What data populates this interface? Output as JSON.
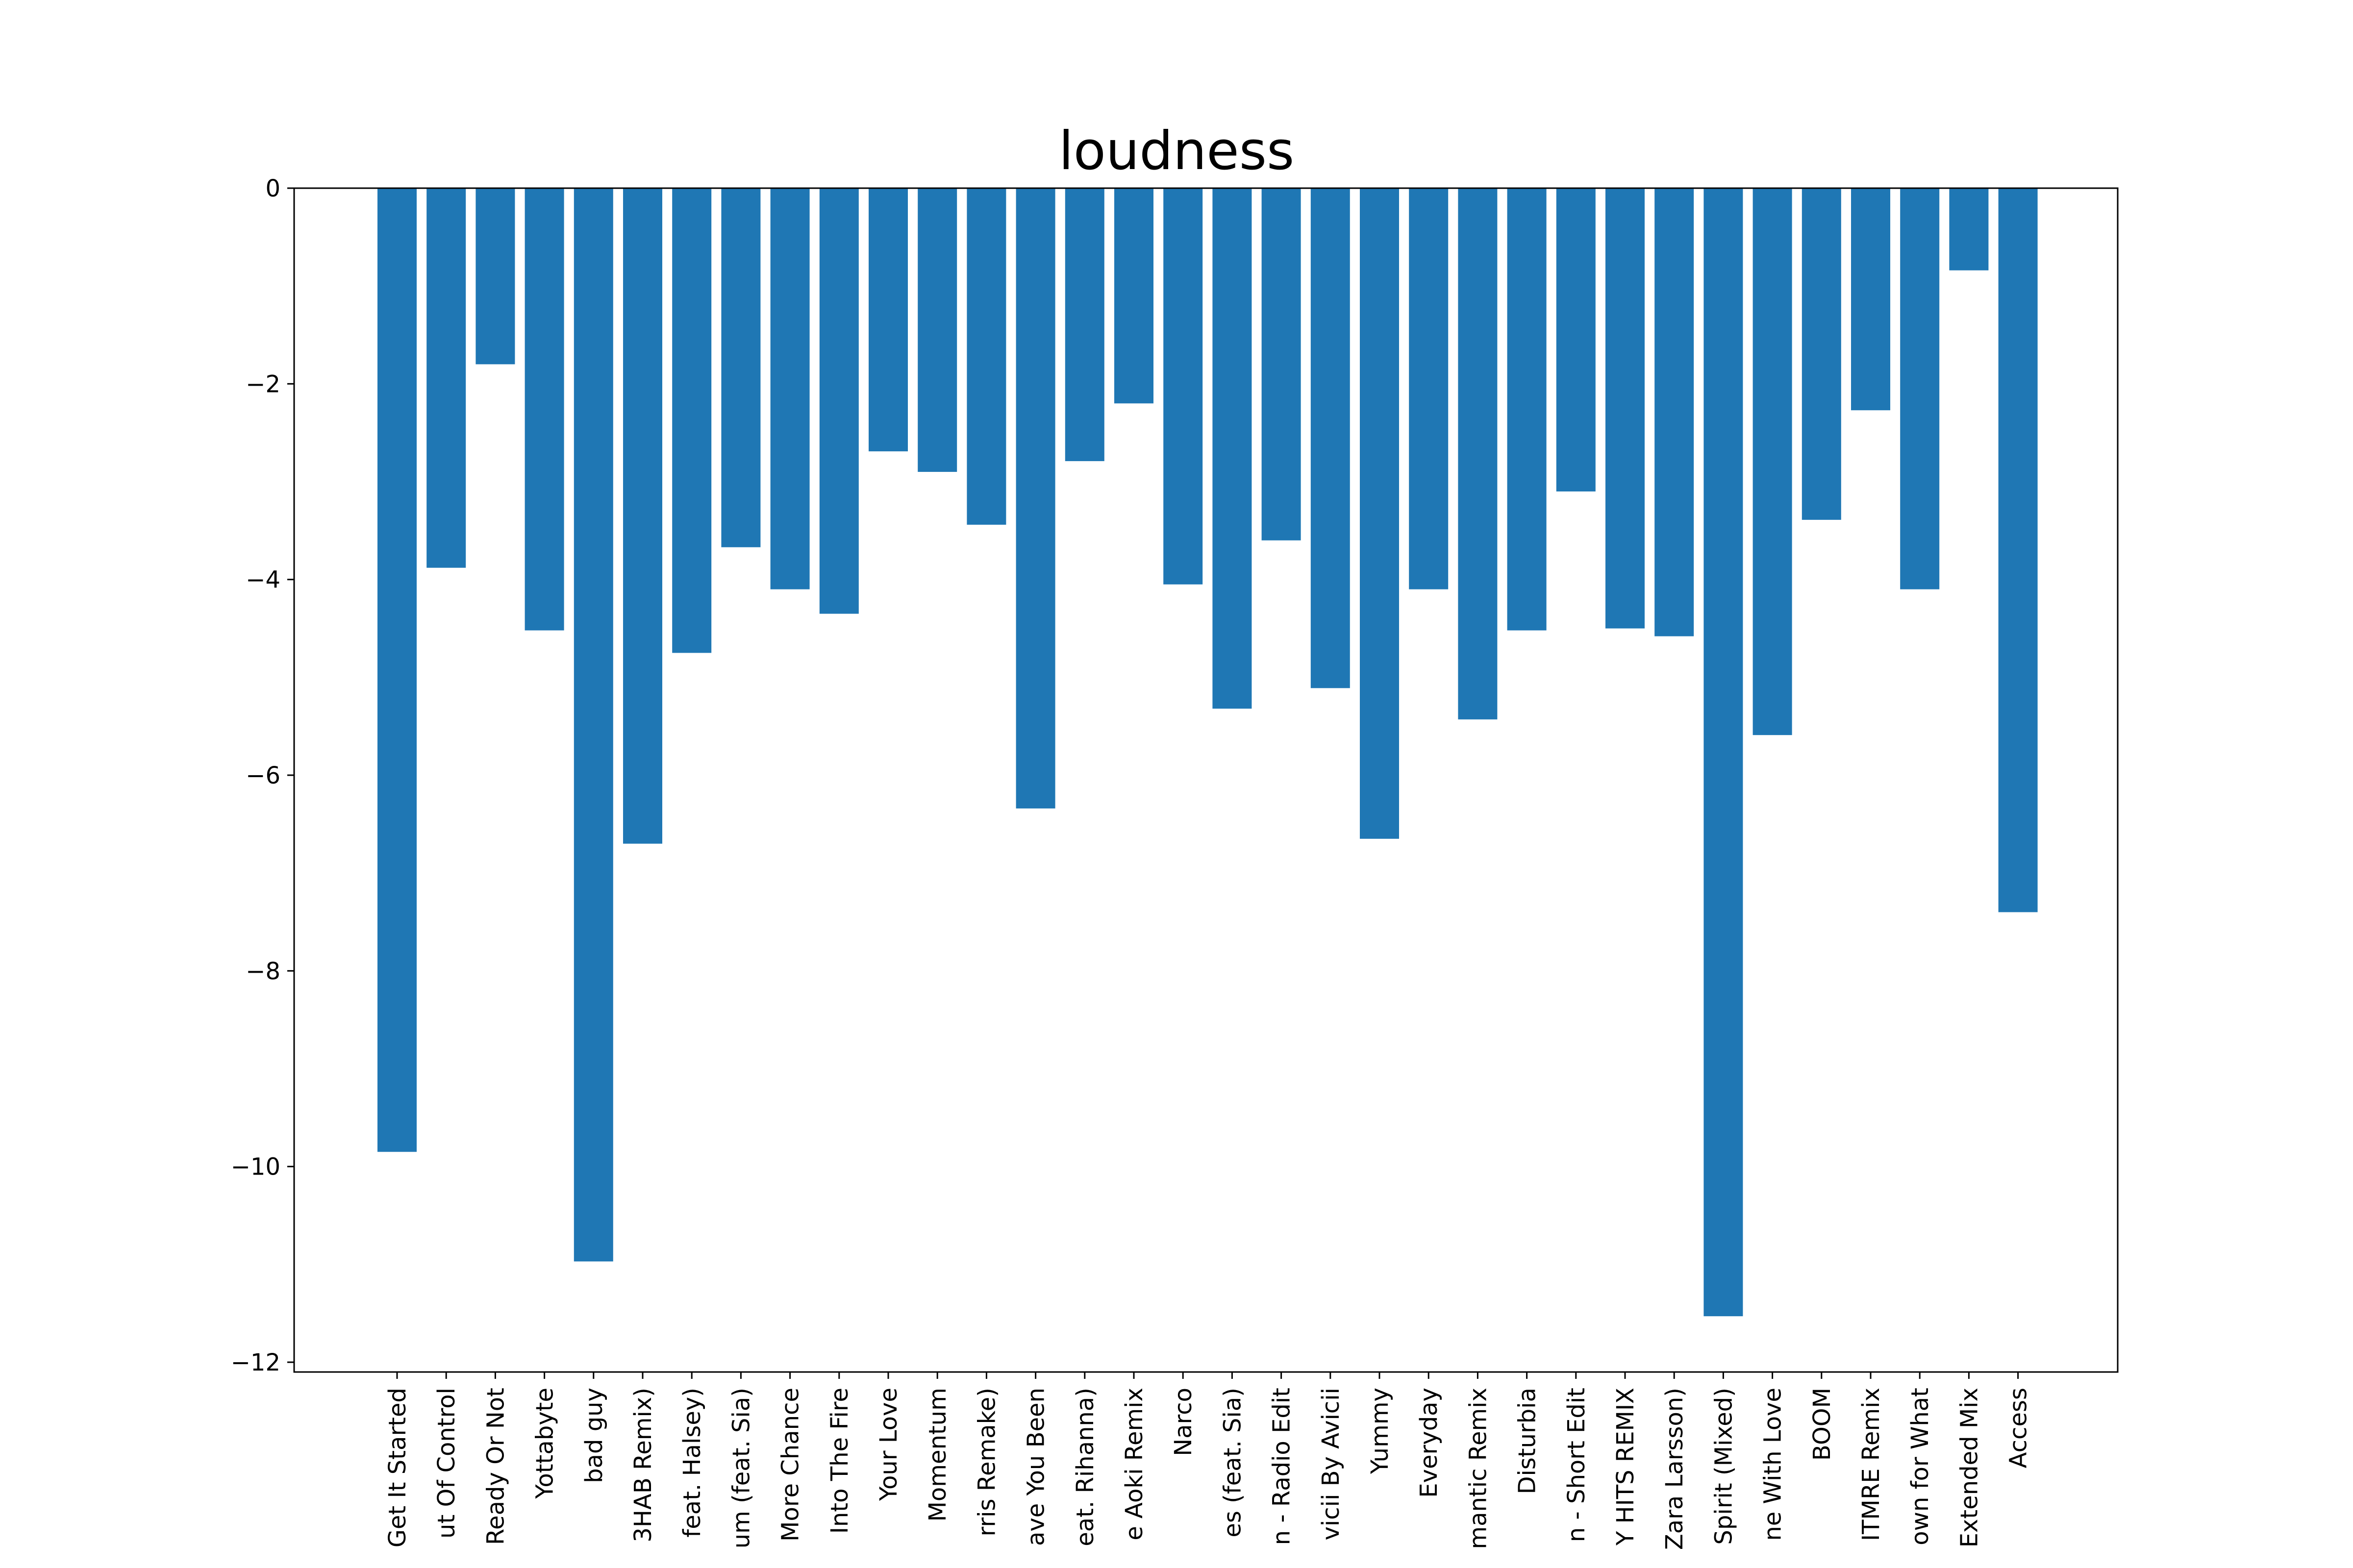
{
  "chart_data": {
    "type": "bar",
    "title": "loudness",
    "xlabel": "",
    "ylabel": "",
    "ylim": [
      -12.1,
      0
    ],
    "yticks": [
      0,
      -2,
      -4,
      -6,
      -8,
      -10,
      -12
    ],
    "ytick_labels": [
      "0",
      "−2",
      "−4",
      "−6",
      "−8",
      "−10",
      "−12"
    ],
    "grid": false,
    "bar_color": "#1f77b4",
    "categories": [
      "Get It Started",
      "ut Of Control",
      "Ready Or Not",
      "Yottabyte",
      "bad guy",
      "3HAB Remix)",
      "feat. Halsey)",
      "um (feat. Sia)",
      "More Chance",
      "Into The Fire",
      "Your Love",
      "Momentum",
      "rris Remake)",
      "ave You Been",
      "eat. Rihanna)",
      "e Aoki Remix",
      "Narco",
      "es (feat. Sia)",
      "n - Radio Edit",
      "vicii By Avicii",
      "Yummy",
      "Everyday",
      "mantic Remix",
      "Disturbia",
      "n - Short Edit",
      "Y HITS REMIX",
      "Zara Larsson)",
      "Spirit (Mixed)",
      "ne With Love",
      "BOOM",
      "ITMRE Remix",
      "own for What",
      "Extended Mix",
      "Access"
    ],
    "values": [
      -9.85,
      -3.88,
      -1.8,
      -4.52,
      -10.97,
      -6.7,
      -4.75,
      -3.67,
      -4.1,
      -4.35,
      -2.69,
      -2.9,
      -3.44,
      -6.34,
      -2.79,
      -2.2,
      -4.05,
      -5.32,
      -3.6,
      -5.11,
      -6.65,
      -4.1,
      -5.43,
      -4.52,
      -3.1,
      -4.5,
      -4.58,
      -11.53,
      -5.59,
      -3.39,
      -2.27,
      -4.1,
      -0.84,
      -7.4
    ]
  }
}
